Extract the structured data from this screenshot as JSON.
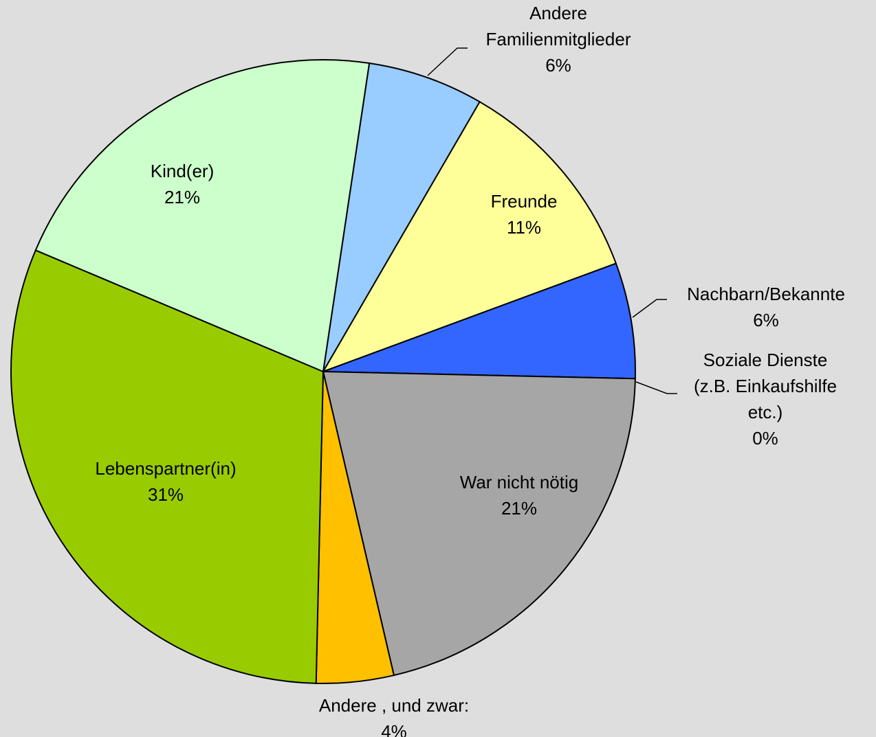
{
  "chart_data": {
    "type": "pie",
    "categories": [
      "Andere Familienmitglieder",
      "Freunde",
      "Nachbarn/Bekannte",
      "Soziale Dienste (z.B. Einkaufshilfe etc.)",
      "War nicht nötig",
      "Andere , und zwar:",
      "Lebenspartner(in)",
      "Kind(er)"
    ],
    "values": [
      6,
      11,
      6,
      0,
      21,
      4,
      31,
      21
    ],
    "value_labels": [
      "6%",
      "11%",
      "6%",
      "0%",
      "21%",
      "4%",
      "31%",
      "21%"
    ],
    "colors": [
      "#99CCFF",
      "#FFFF99",
      "#3366FF",
      "#CCFFFF",
      "#A6A6A6",
      "#FFC000",
      "#99CC00",
      "#CCFFCC"
    ]
  }
}
